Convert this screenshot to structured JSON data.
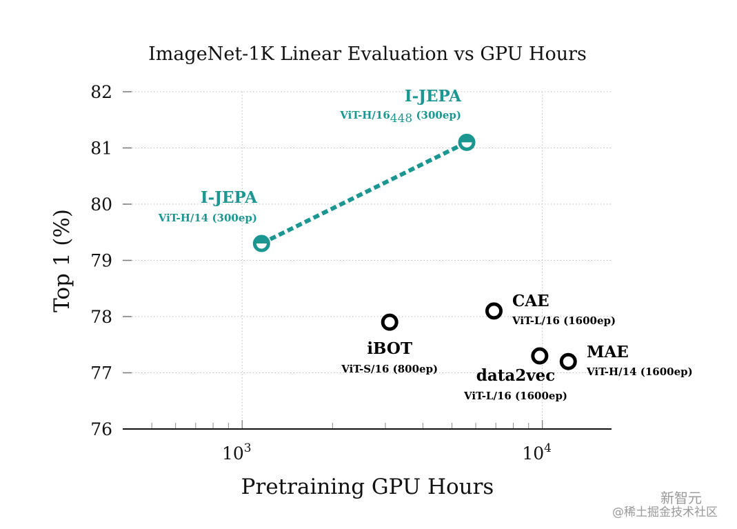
{
  "chart_data": {
    "type": "scatter",
    "title": "ImageNet-1K Linear Evaluation vs GPU Hours",
    "xlabel": "Pretraining GPU Hours",
    "ylabel": "Top 1 (%)",
    "xscale": "log",
    "xlim": [
      400,
      17000
    ],
    "ylim": [
      76,
      82
    ],
    "yticks": [
      76,
      77,
      78,
      79,
      80,
      81,
      82
    ],
    "xticks": [
      {
        "value": 1000,
        "base": "10",
        "exp": "3"
      },
      {
        "value": 10000,
        "base": "10",
        "exp": "4"
      }
    ],
    "grid": true,
    "colors": {
      "ijepa": "#1b9690",
      "baseline": "#000000"
    },
    "series": [
      {
        "name": "I-JEPA",
        "connected": true,
        "color": "#1b9690",
        "marker": "half-filled-circle",
        "points": [
          {
            "x": 1160,
            "y": 79.3,
            "label": "I-JEPA",
            "sublabel": "ViT-H/14 (300ep)"
          },
          {
            "x": 5600,
            "y": 81.1,
            "label": "I-JEPA",
            "sublabel": "ViT-H/16",
            "sub": "448",
            "suffix": " (300ep)"
          }
        ]
      },
      {
        "connected": false,
        "color": "#000000",
        "marker": "open-circle",
        "points": [
          {
            "x": 3100,
            "y": 77.9,
            "label": "iBOT",
            "sublabel": "ViT-S/16 (800ep)"
          },
          {
            "x": 6900,
            "y": 78.1,
            "label": "CAE",
            "sublabel": "ViT-L/16 (1600ep)"
          },
          {
            "x": 9800,
            "y": 77.3,
            "label": "data2vec",
            "sublabel": "ViT-L/16 (1600ep)"
          },
          {
            "x": 12200,
            "y": 77.2,
            "label": "MAE",
            "sublabel": "ViT-H/14 (1600ep)"
          }
        ]
      }
    ]
  },
  "watermark": {
    "line1": "新智元",
    "line2": "@稀土掘金技术社区"
  }
}
